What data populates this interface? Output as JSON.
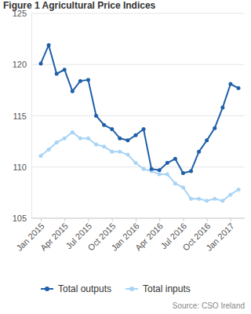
{
  "chart_data": {
    "type": "line",
    "title": "Figure 1 Agricultural Price Indices",
    "source": "Source: CSO Ireland",
    "categories": [
      "Jan 2015",
      null,
      null,
      "Apr 2015",
      null,
      null,
      "Jul 2015",
      null,
      null,
      "Oct 2015",
      null,
      null,
      "Jan 2016",
      null,
      null,
      "Apr 2016",
      null,
      null,
      "Jul 2016",
      null,
      null,
      "Oct 2016",
      null,
      null,
      "Jan 2017",
      null
    ],
    "series": [
      {
        "name": "Total outputs",
        "color": "#1f5fa8",
        "marker": "circle",
        "values": [
          120.1,
          121.9,
          119.1,
          119.5,
          117.4,
          118.4,
          118.5,
          115.0,
          114.1,
          113.7,
          112.8,
          112.6,
          113.1,
          113.7,
          109.8,
          109.7,
          110.4,
          110.8,
          109.4,
          109.6,
          111.5,
          112.6,
          113.8,
          115.8,
          118.1,
          117.7
        ]
      },
      {
        "name": "Total inputs",
        "color": "#a8d4f5",
        "marker": "circle",
        "values": [
          111.1,
          111.7,
          112.4,
          112.8,
          113.4,
          112.8,
          112.8,
          112.2,
          112.0,
          111.5,
          111.5,
          111.2,
          110.4,
          109.8,
          109.6,
          109.3,
          109.3,
          108.4,
          108.0,
          106.9,
          106.9,
          106.7,
          106.9,
          106.7,
          107.3,
          107.8
        ]
      }
    ],
    "ylim": [
      105,
      125
    ],
    "yticks": [
      105,
      110,
      115,
      120,
      125
    ],
    "grid": true,
    "legend": "bottom"
  }
}
